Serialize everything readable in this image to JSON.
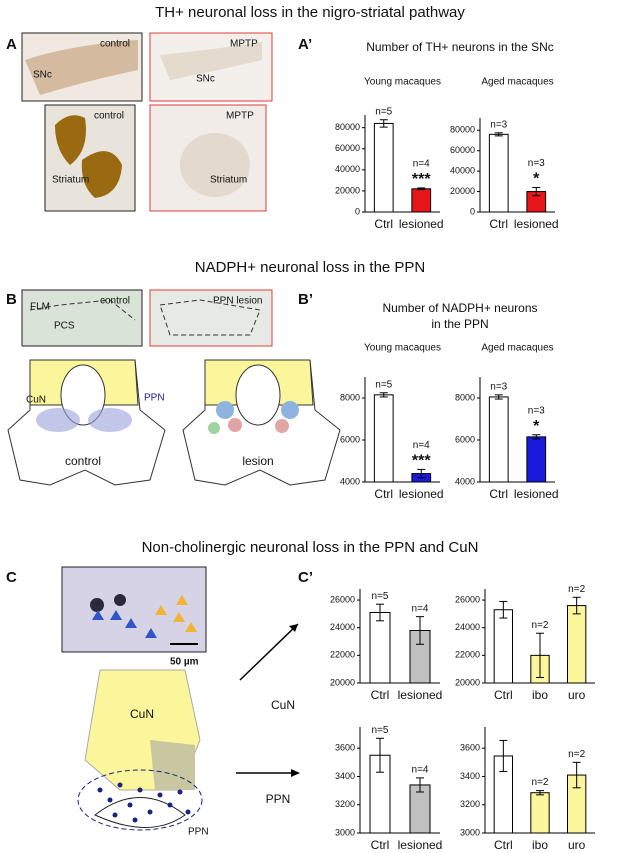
{
  "figure": {
    "sections": [
      "TH+ neuronal loss in the nigro-striatal pathway",
      "NADPH+ neuronal loss in the PPN",
      "Non-cholinergic neuronal loss in the PPN and CuN"
    ],
    "panel_letters": [
      "A",
      "A’",
      "B",
      "B’",
      "C",
      "C’"
    ],
    "panel_titles": [
      "Number of TH+ neurons in the SNc",
      "Number of NADPH+ neurons",
      "in the PPN"
    ],
    "image_labels": [
      "control",
      "MPTP",
      "SNc",
      "SNc",
      "control",
      "MPTP",
      "Striatum",
      "Striatum",
      "control",
      "PPN lesion",
      "FLM",
      "PCS",
      "CuN",
      "PPN",
      "control",
      "lesion",
      "50 µm",
      "CuN",
      "PPN"
    ],
    "arrow_labels": [
      "CuN",
      "PPN"
    ]
  },
  "chart_data": [
    {
      "type": "bar",
      "title": "Young macaques",
      "categories": [
        "Ctrl",
        "lesioned"
      ],
      "values": [
        84000,
        22000
      ],
      "errors": [
        3500,
        800
      ],
      "colors": [
        "#ffffff",
        "#e8161b"
      ],
      "labels": [
        "n=5",
        "n=4"
      ],
      "significance": [
        null,
        "***"
      ],
      "ylim": [
        0,
        92000
      ],
      "yticks": [
        0,
        20000,
        40000,
        60000,
        80000
      ]
    },
    {
      "type": "bar",
      "title": "Aged macaques",
      "categories": [
        "Ctrl",
        "lesioned"
      ],
      "values": [
        76000,
        20000
      ],
      "errors": [
        1500,
        4000
      ],
      "colors": [
        "#ffffff",
        "#e8161b"
      ],
      "labels": [
        "n=3",
        "n=3"
      ],
      "significance": [
        null,
        "*"
      ],
      "ylim": [
        0,
        92000
      ],
      "yticks": [
        0,
        20000,
        40000,
        60000,
        80000
      ]
    },
    {
      "type": "bar",
      "title": "Young macaques",
      "categories": [
        "Ctrl",
        "lesioned"
      ],
      "values": [
        8150,
        4400
      ],
      "errors": [
        100,
        200
      ],
      "colors": [
        "#ffffff",
        "#1a1adf"
      ],
      "labels": [
        "n=5",
        "n=4"
      ],
      "significance": [
        null,
        "***"
      ],
      "ylim": [
        4000,
        9000
      ],
      "yticks": [
        4000,
        6000,
        8000
      ]
    },
    {
      "type": "bar",
      "title": "Aged macaques",
      "categories": [
        "Ctrl",
        "lesioned"
      ],
      "values": [
        8050,
        6150
      ],
      "errors": [
        100,
        100
      ],
      "colors": [
        "#ffffff",
        "#1a1adf"
      ],
      "labels": [
        "n=3",
        "n=3"
      ],
      "significance": [
        null,
        "*"
      ],
      "ylim": [
        4000,
        9000
      ],
      "yticks": [
        4000,
        6000,
        8000
      ]
    },
    {
      "type": "bar",
      "categories": [
        "Ctrl",
        "lesioned"
      ],
      "values": [
        25100,
        23800
      ],
      "errors": [
        600,
        1000
      ],
      "colors": [
        "#ffffff",
        "#c0c0c0"
      ],
      "labels": [
        "n=5",
        "n=4"
      ],
      "ylim": [
        20000,
        26800
      ],
      "yticks": [
        20000,
        22000,
        24000,
        26000
      ]
    },
    {
      "type": "bar",
      "categories": [
        "Ctrl",
        "ibo",
        "uro"
      ],
      "values": [
        25300,
        22000,
        25600
      ],
      "errors": [
        600,
        1600,
        600
      ],
      "colors": [
        "#ffffff",
        "#fbf59b",
        "#fbf59b"
      ],
      "labels": [
        null,
        "n=2",
        "n=2"
      ],
      "ylim": [
        20000,
        26800
      ],
      "yticks": [
        20000,
        22000,
        24000,
        26000
      ]
    },
    {
      "type": "bar",
      "categories": [
        "Ctrl",
        "lesioned"
      ],
      "values": [
        3550,
        3340
      ],
      "errors": [
        120,
        50
      ],
      "colors": [
        "#ffffff",
        "#c0c0c0"
      ],
      "labels": [
        "n=5",
        "n=4"
      ],
      "ylim": [
        3000,
        3750
      ],
      "yticks": [
        3000,
        3200,
        3400,
        3600
      ]
    },
    {
      "type": "bar",
      "categories": [
        "Ctrl",
        "ibo",
        "uro"
      ],
      "values": [
        3545,
        3285,
        3410
      ],
      "errors": [
        110,
        15,
        90
      ],
      "colors": [
        "#ffffff",
        "#fbf59b",
        "#fbf59b"
      ],
      "labels": [
        null,
        "n=2",
        "n=2"
      ],
      "ylim": [
        3000,
        3750
      ],
      "yticks": [
        3000,
        3200,
        3400,
        3600
      ]
    }
  ]
}
